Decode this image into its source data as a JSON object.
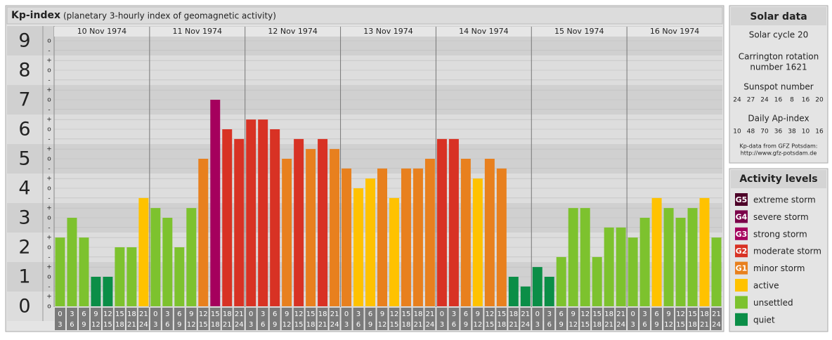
{
  "chart_data": {
    "type": "bar",
    "title": "Kp-index",
    "subtitle": "(planetary 3-hourly index of geomagnetic activity)",
    "days": [
      {
        "date": "10 Nov 1974",
        "values": [
          2.33,
          3,
          2.33,
          1,
          1,
          2,
          2,
          3.67
        ],
        "colors": [
          "#7dc22e",
          "#7dc22e",
          "#7dc22e",
          "#0b8e47",
          "#0b8e47",
          "#7dc22e",
          "#7dc22e",
          "#ffc200"
        ]
      },
      {
        "date": "11 Nov 1974",
        "values": [
          3.33,
          3,
          2,
          3.33,
          5,
          7,
          6,
          5.67
        ],
        "colors": [
          "#7dc22e",
          "#7dc22e",
          "#7dc22e",
          "#7dc22e",
          "#e8801e",
          "#a5005d",
          "#d83224",
          "#d83224"
        ]
      },
      {
        "date": "12 Nov 1974",
        "values": [
          6.33,
          6.33,
          6,
          5,
          5.67,
          5.33,
          5.67,
          5.33
        ],
        "colors": [
          "#d83224",
          "#d83224",
          "#d83224",
          "#e8801e",
          "#d83224",
          "#e8801e",
          "#d83224",
          "#e8801e"
        ]
      },
      {
        "date": "13 Nov 1974",
        "values": [
          4.67,
          4,
          4.33,
          4.67,
          3.67,
          4.67,
          4.67,
          5
        ],
        "colors": [
          "#e8801e",
          "#ffc200",
          "#ffc200",
          "#e8801e",
          "#ffc200",
          "#e8801e",
          "#e8801e",
          "#e8801e"
        ]
      },
      {
        "date": "14 Nov 1974",
        "values": [
          5.67,
          5.67,
          5,
          4.33,
          5,
          4.67,
          1,
          0.67
        ],
        "colors": [
          "#d83224",
          "#d83224",
          "#e8801e",
          "#ffc200",
          "#e8801e",
          "#e8801e",
          "#0b8e47",
          "#0b8e47"
        ]
      },
      {
        "date": "15 Nov 1974",
        "values": [
          1.33,
          1,
          1.67,
          3.33,
          3.33,
          1.67,
          2.67,
          2.67
        ],
        "colors": [
          "#0b8e47",
          "#0b8e47",
          "#7dc22e",
          "#7dc22e",
          "#7dc22e",
          "#7dc22e",
          "#7dc22e",
          "#7dc22e"
        ]
      },
      {
        "date": "16 Nov 1974",
        "values": [
          2.33,
          3,
          3.67,
          3.33,
          3,
          3.33,
          3.67,
          2.33
        ],
        "colors": [
          "#7dc22e",
          "#7dc22e",
          "#ffc200",
          "#7dc22e",
          "#7dc22e",
          "#7dc22e",
          "#ffc200",
          "#7dc22e"
        ]
      }
    ],
    "hour_labels": [
      [
        "0",
        "3"
      ],
      [
        "3",
        "6"
      ],
      [
        "6",
        "9"
      ],
      [
        "9",
        "12"
      ],
      [
        "12",
        "15"
      ],
      [
        "15",
        "18"
      ],
      [
        "18",
        "21"
      ],
      [
        "21",
        "24"
      ]
    ],
    "ylim": [
      -0.5,
      9.5
    ],
    "yticks": [
      0,
      1,
      2,
      3,
      4,
      5,
      6,
      7,
      8,
      9
    ],
    "yminor": [
      {
        "value": 0,
        "label": "o"
      },
      {
        "value": 0.33,
        "label": "+"
      },
      {
        "value": 0.67,
        "label": "-"
      },
      {
        "value": 1,
        "label": "o"
      },
      {
        "value": 1.33,
        "label": "+"
      },
      {
        "value": 1.67,
        "label": "-"
      },
      {
        "value": 2,
        "label": "o"
      },
      {
        "value": 2.33,
        "label": "+"
      },
      {
        "value": 2.67,
        "label": "-"
      },
      {
        "value": 3,
        "label": "o"
      },
      {
        "value": 3.33,
        "label": "+"
      },
      {
        "value": 3.67,
        "label": "-"
      },
      {
        "value": 4,
        "label": "o"
      },
      {
        "value": 4.33,
        "label": "+"
      },
      {
        "value": 4.67,
        "label": "-"
      },
      {
        "value": 5,
        "label": "o"
      },
      {
        "value": 5.33,
        "label": "+"
      },
      {
        "value": 5.67,
        "label": "-"
      },
      {
        "value": 6,
        "label": "o"
      },
      {
        "value": 6.33,
        "label": "+"
      },
      {
        "value": 6.67,
        "label": "-"
      },
      {
        "value": 7,
        "label": "o"
      },
      {
        "value": 7.33,
        "label": "+"
      },
      {
        "value": 7.67,
        "label": "-"
      },
      {
        "value": 8,
        "label": "o"
      },
      {
        "value": 8.33,
        "label": "+"
      },
      {
        "value": 8.67,
        "label": "-"
      },
      {
        "value": 9,
        "label": "o"
      }
    ],
    "grid": true
  },
  "solar_data": {
    "title": "Solar data",
    "cycle": "Solar cycle 20",
    "carrington": [
      "Carrington rotation",
      "number 1621"
    ],
    "sunspot_title": "Sunspot number",
    "sunspot": [
      24,
      27,
      24,
      16,
      8,
      16,
      20
    ],
    "ap_title": "Daily Ap-index",
    "ap": [
      10,
      48,
      70,
      36,
      38,
      10,
      16
    ],
    "source": [
      "Kp-data from GFZ Potsdam:",
      "http://www.gfz-potsdam.de"
    ]
  },
  "activity_levels": {
    "title": "Activity levels",
    "items": [
      {
        "badge": "G5",
        "label": "extreme storm",
        "color": "#4d0028"
      },
      {
        "badge": "G4",
        "label": "severe storm",
        "color": "#7b0049"
      },
      {
        "badge": "G3",
        "label": "strong storm",
        "color": "#a5005d"
      },
      {
        "badge": "G2",
        "label": "moderate storm",
        "color": "#d83224"
      },
      {
        "badge": "G1",
        "label": "minor storm",
        "color": "#e8801e"
      },
      {
        "label": "active",
        "color": "#ffc200"
      },
      {
        "label": "unsettled",
        "color": "#7dc22e"
      },
      {
        "label": "quiet",
        "color": "#0b8e47"
      }
    ]
  }
}
